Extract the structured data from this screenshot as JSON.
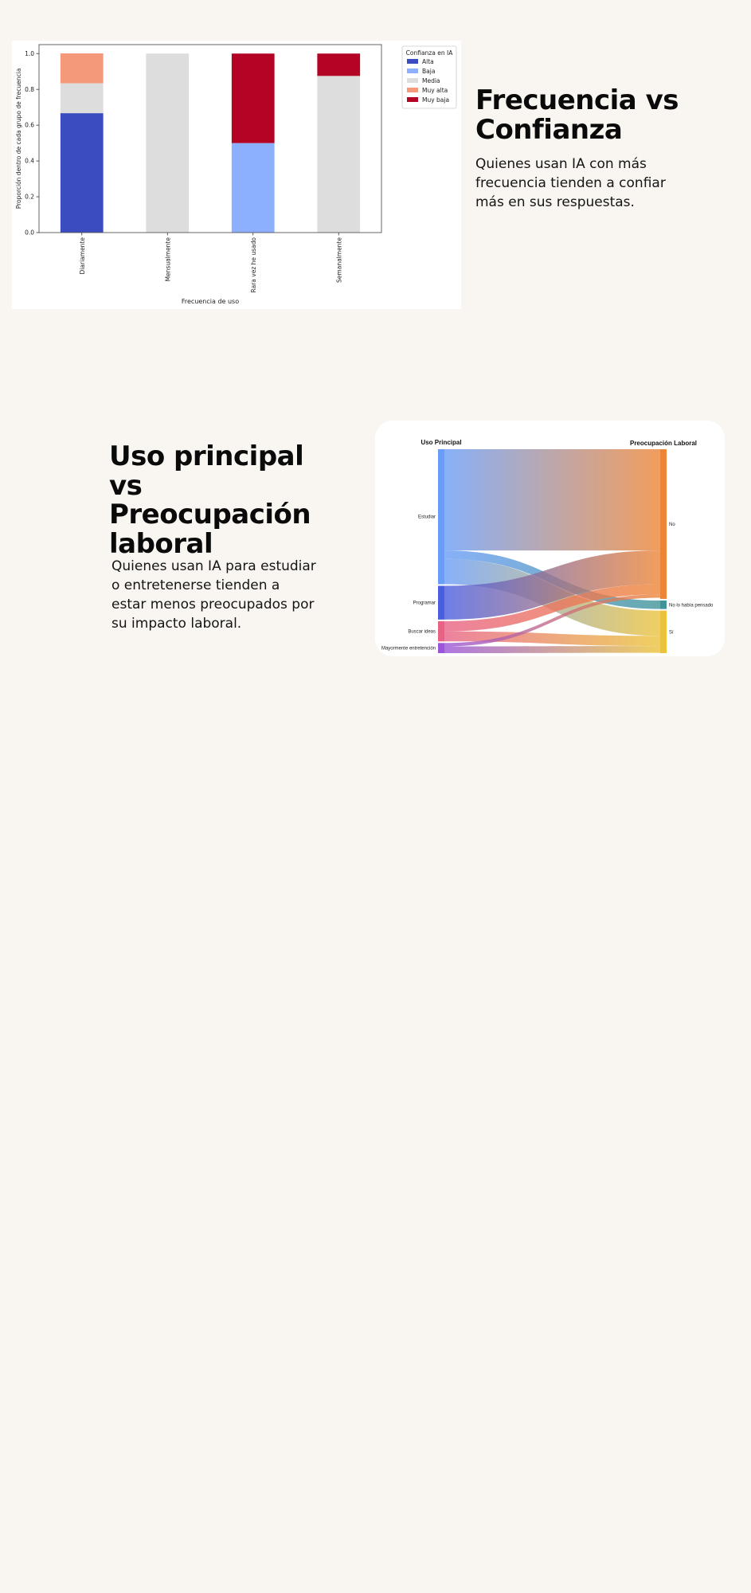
{
  "sections": [
    {
      "title": "Frecuencia vs Confianza",
      "text": "Quienes usan IA con más frecuencia tienden a confiar más en sus respuestas."
    },
    {
      "title": "Uso principal vs Preocupación laboral",
      "text": "Quienes usan IA para estudiar o entretenerse tienden a estar menos preocupados por su impacto laboral."
    }
  ],
  "chart_data": [
    {
      "type": "bar",
      "stacked": true,
      "categories": [
        "Diariamente",
        "Mensualmente",
        "Rara vez he usado",
        "Semanalmente"
      ],
      "series": [
        {
          "name": "Alta",
          "color": "#3b4cc0",
          "values": [
            0.667,
            0,
            0,
            0
          ]
        },
        {
          "name": "Baja",
          "color": "#8db0fe",
          "values": [
            0,
            0,
            0.5,
            0
          ]
        },
        {
          "name": "Media",
          "color": "#dddddd",
          "values": [
            0.167,
            1.0,
            0,
            0.875
          ]
        },
        {
          "name": "Muy alta",
          "color": "#f49a7b",
          "values": [
            0.167,
            0,
            0,
            0
          ]
        },
        {
          "name": "Muy baja",
          "color": "#b40426",
          "values": [
            0,
            0,
            0.5,
            0.125
          ]
        }
      ],
      "xlabel": "Frecuencia de uso",
      "ylabel": "Proporción dentro de cada grupo de frecuencia",
      "ylim": [
        0,
        1.05
      ],
      "yticks": [
        0.0,
        0.2,
        0.4,
        0.6,
        0.8,
        1.0
      ],
      "ytick_labels": [
        "0.0",
        "0.2",
        "0.4",
        "0.6",
        "0.8",
        "1.0"
      ],
      "legend_title": "Confianza en IA",
      "legend_position": "outside right",
      "grid": false
    },
    {
      "type": "sankey",
      "left_title": "Uso Principal",
      "right_title": "Preocupación Laboral",
      "sources": [
        {
          "name": "Estudiar",
          "color": "#6a9df7"
        },
        {
          "name": "Programar",
          "color": "#4a5ee0"
        },
        {
          "name": "Buscar ideas",
          "color": "#e86286"
        },
        {
          "name": "Mayormente entretención",
          "color": "#9a55d8"
        }
      ],
      "targets": [
        {
          "name": "No",
          "color": "#ee8535"
        },
        {
          "name": "No lo había pensado",
          "color": "#3f9498"
        },
        {
          "name": "Sí",
          "color": "#ebc33a"
        }
      ],
      "links": [
        {
          "source": "Estudiar",
          "target": "No",
          "value": 6
        },
        {
          "source": "Estudiar",
          "target": "No lo había pensado",
          "value": 0.5
        },
        {
          "source": "Estudiar",
          "target": "Sí",
          "value": 1.5
        },
        {
          "source": "Programar",
          "target": "No",
          "value": 2
        },
        {
          "source": "Buscar ideas",
          "target": "No",
          "value": 0.6
        },
        {
          "source": "Buscar ideas",
          "target": "Sí",
          "value": 0.6
        },
        {
          "source": "Mayormente entretención",
          "target": "No",
          "value": 0.2
        },
        {
          "source": "Mayormente entretención",
          "target": "Sí",
          "value": 0.4
        }
      ]
    }
  ]
}
